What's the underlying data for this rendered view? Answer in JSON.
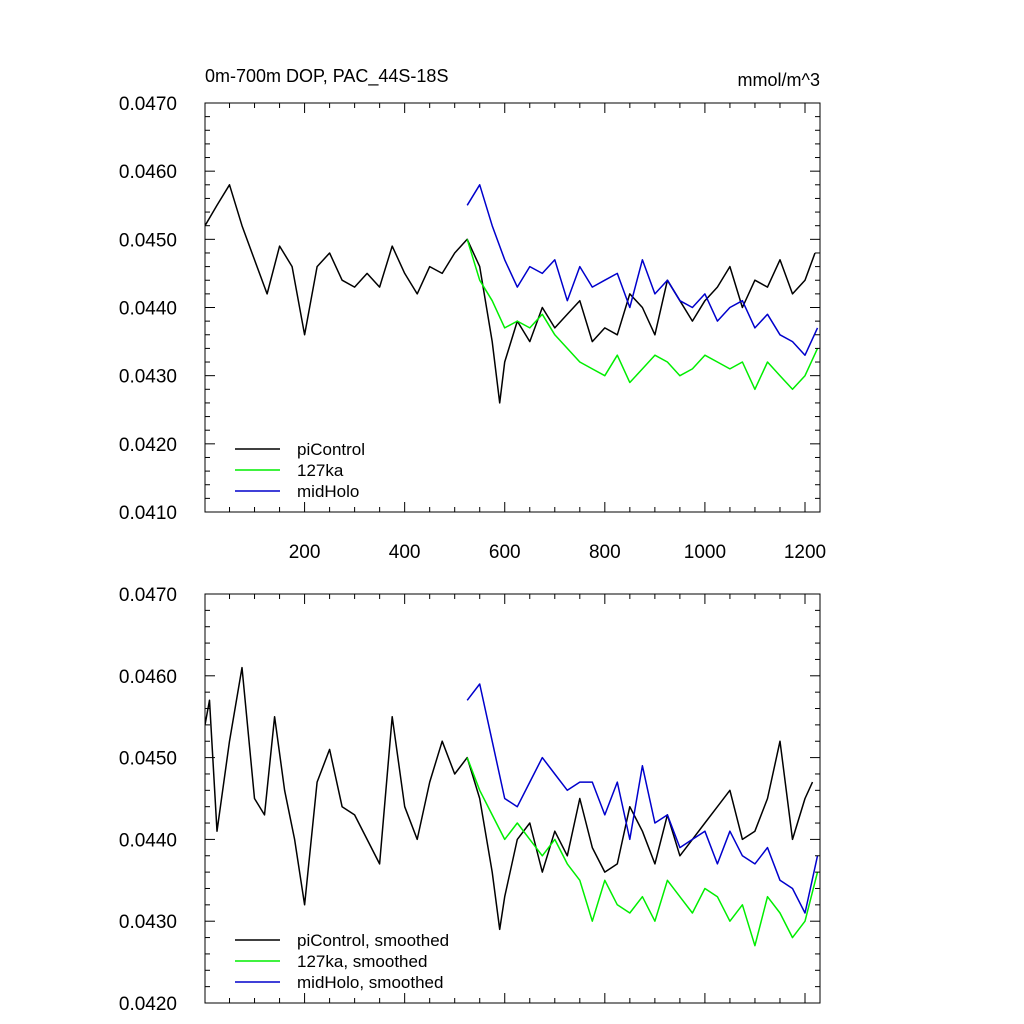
{
  "chart_data": [
    {
      "type": "line",
      "title": "0m-700m DOP, PAC_44S-18S",
      "units": "mmol/m^3",
      "xlim": [
        1,
        1230
      ],
      "ylim": [
        0.041,
        0.047
      ],
      "xticks": [
        200,
        400,
        600,
        800,
        1000,
        1200
      ],
      "xtick_labels": [
        "200",
        "400",
        "600",
        "800",
        "1000",
        "1200"
      ],
      "yticks": [
        0.041,
        0.042,
        0.043,
        0.044,
        0.045,
        0.046,
        0.047
      ],
      "ytick_labels": [
        "0.0410",
        "0.0420",
        "0.0430",
        "0.0440",
        "0.0450",
        "0.0460",
        "0.0470"
      ],
      "legend_position": "bottom-left",
      "series": [
        {
          "name": "piControl",
          "color": "#000000",
          "x": [
            1,
            25,
            50,
            75,
            100,
            125,
            150,
            175,
            200,
            225,
            250,
            275,
            300,
            325,
            350,
            375,
            400,
            425,
            450,
            475,
            500,
            525,
            550,
            575,
            590,
            600,
            625,
            650,
            675,
            700,
            725,
            750,
            775,
            800,
            825,
            850,
            875,
            900,
            925,
            950,
            975,
            1000,
            1025,
            1050,
            1075,
            1100,
            1125,
            1150,
            1175,
            1200,
            1220
          ],
          "values": [
            0.0452,
            0.0455,
            0.0458,
            0.0452,
            0.0447,
            0.0442,
            0.0449,
            0.0446,
            0.0436,
            0.0446,
            0.0448,
            0.0444,
            0.0443,
            0.0445,
            0.0443,
            0.0449,
            0.0445,
            0.0442,
            0.0446,
            0.0445,
            0.0448,
            0.045,
            0.0446,
            0.0435,
            0.0426,
            0.0432,
            0.0438,
            0.0435,
            0.044,
            0.0437,
            0.0439,
            0.0441,
            0.0435,
            0.0437,
            0.0436,
            0.0442,
            0.044,
            0.0436,
            0.0444,
            0.0441,
            0.0438,
            0.0441,
            0.0443,
            0.0446,
            0.044,
            0.0444,
            0.0443,
            0.0447,
            0.0442,
            0.0444,
            0.0448
          ]
        },
        {
          "name": "127ka",
          "color": "#00ee00",
          "x": [
            525,
            550,
            575,
            600,
            625,
            650,
            675,
            700,
            725,
            750,
            775,
            800,
            825,
            850,
            875,
            900,
            925,
            950,
            975,
            1000,
            1025,
            1050,
            1075,
            1100,
            1125,
            1150,
            1175,
            1200,
            1225
          ],
          "values": [
            0.045,
            0.0444,
            0.0441,
            0.0437,
            0.0438,
            0.0437,
            0.0439,
            0.0436,
            0.0434,
            0.0432,
            0.0431,
            0.043,
            0.0433,
            0.0429,
            0.0431,
            0.0433,
            0.0432,
            0.043,
            0.0431,
            0.0433,
            0.0432,
            0.0431,
            0.0432,
            0.0428,
            0.0432,
            0.043,
            0.0428,
            0.043,
            0.0434
          ]
        },
        {
          "name": "midHolo",
          "color": "#0000cc",
          "x": [
            525,
            550,
            575,
            600,
            625,
            650,
            675,
            700,
            725,
            750,
            775,
            800,
            825,
            850,
            875,
            900,
            925,
            950,
            975,
            1000,
            1025,
            1050,
            1075,
            1100,
            1125,
            1150,
            1175,
            1200,
            1225
          ],
          "values": [
            0.0455,
            0.0458,
            0.0452,
            0.0447,
            0.0443,
            0.0446,
            0.0445,
            0.0447,
            0.0441,
            0.0446,
            0.0443,
            0.0444,
            0.0445,
            0.044,
            0.0447,
            0.0442,
            0.0444,
            0.0441,
            0.044,
            0.0442,
            0.0438,
            0.044,
            0.0441,
            0.0437,
            0.0439,
            0.0436,
            0.0435,
            0.0433,
            0.0437
          ]
        }
      ]
    },
    {
      "type": "line",
      "title": "",
      "xlim": [
        1,
        1230
      ],
      "ylim": [
        0.042,
        0.047
      ],
      "xticks": [
        200,
        400,
        600,
        800,
        1000,
        1200
      ],
      "yticks": [
        0.042,
        0.043,
        0.044,
        0.045,
        0.046,
        0.047
      ],
      "ytick_labels": [
        "0.0420",
        "0.0430",
        "0.0440",
        "0.0450",
        "0.0460",
        "0.0470"
      ],
      "legend_position": "bottom-left",
      "series": [
        {
          "name": "piControl, smoothed",
          "color": "#000000",
          "x": [
            1,
            10,
            25,
            50,
            75,
            100,
            120,
            140,
            160,
            180,
            200,
            225,
            250,
            275,
            300,
            325,
            350,
            375,
            400,
            425,
            450,
            475,
            500,
            525,
            550,
            575,
            590,
            600,
            625,
            650,
            675,
            700,
            725,
            750,
            775,
            800,
            825,
            850,
            875,
            900,
            925,
            950,
            975,
            1000,
            1025,
            1050,
            1075,
            1100,
            1125,
            1150,
            1175,
            1200,
            1215
          ],
          "values": [
            0.0454,
            0.0457,
            0.0441,
            0.0452,
            0.0461,
            0.0445,
            0.0443,
            0.0455,
            0.0446,
            0.044,
            0.0432,
            0.0447,
            0.0451,
            0.0444,
            0.0443,
            0.044,
            0.0437,
            0.0455,
            0.0444,
            0.044,
            0.0447,
            0.0452,
            0.0448,
            0.045,
            0.0445,
            0.0436,
            0.0429,
            0.0433,
            0.044,
            0.0442,
            0.0436,
            0.0441,
            0.0438,
            0.0445,
            0.0439,
            0.0436,
            0.0437,
            0.0444,
            0.0441,
            0.0437,
            0.0443,
            0.0438,
            0.044,
            0.0442,
            0.0444,
            0.0446,
            0.044,
            0.0441,
            0.0445,
            0.0452,
            0.044,
            0.0445,
            0.0447
          ]
        },
        {
          "name": "127ka, smoothed",
          "color": "#00ee00",
          "x": [
            525,
            550,
            575,
            600,
            625,
            650,
            675,
            700,
            725,
            750,
            775,
            800,
            825,
            850,
            875,
            900,
            925,
            950,
            975,
            1000,
            1025,
            1050,
            1075,
            1100,
            1125,
            1150,
            1175,
            1200,
            1225
          ],
          "values": [
            0.045,
            0.0446,
            0.0443,
            0.044,
            0.0442,
            0.044,
            0.0438,
            0.044,
            0.0437,
            0.0435,
            0.043,
            0.0435,
            0.0432,
            0.0431,
            0.0433,
            0.043,
            0.0435,
            0.0433,
            0.0431,
            0.0434,
            0.0433,
            0.043,
            0.0432,
            0.0427,
            0.0433,
            0.0431,
            0.0428,
            0.043,
            0.0436
          ]
        },
        {
          "name": "midHolo, smoothed",
          "color": "#0000cc",
          "x": [
            525,
            550,
            575,
            600,
            625,
            650,
            675,
            700,
            725,
            750,
            775,
            800,
            825,
            850,
            875,
            900,
            925,
            950,
            975,
            1000,
            1025,
            1050,
            1075,
            1100,
            1125,
            1150,
            1175,
            1200,
            1225
          ],
          "values": [
            0.0457,
            0.0459,
            0.0452,
            0.0445,
            0.0444,
            0.0447,
            0.045,
            0.0448,
            0.0446,
            0.0447,
            0.0447,
            0.0443,
            0.0447,
            0.044,
            0.0449,
            0.0442,
            0.0443,
            0.0439,
            0.044,
            0.0441,
            0.0437,
            0.0441,
            0.0438,
            0.0437,
            0.0439,
            0.0435,
            0.0434,
            0.0431,
            0.0438
          ]
        }
      ]
    }
  ]
}
